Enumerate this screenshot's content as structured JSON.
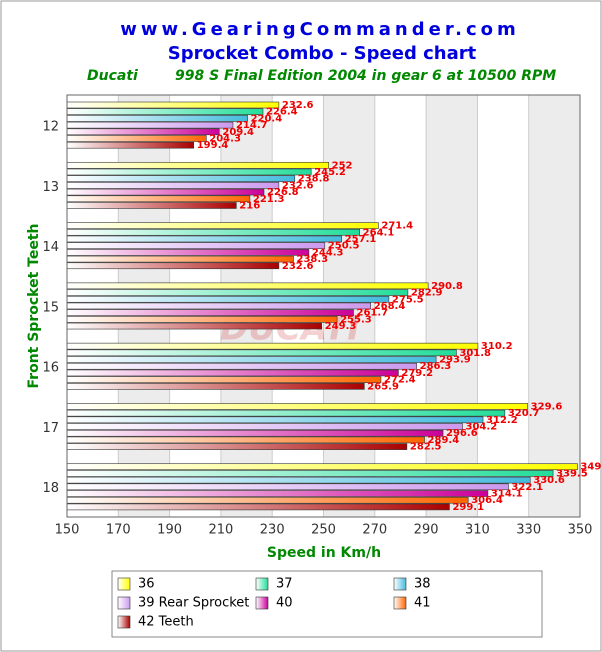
{
  "chart_data": {
    "type": "bar",
    "orientation": "horizontal",
    "title": "www.GearingCommander.com",
    "subtitle": "Sprocket Combo - Speed chart",
    "make": "Ducati",
    "model_line": "998 S Final Edition  2004 in gear 6 at 10500 RPM",
    "watermark": "DUCATI",
    "x_label": "Speed in Km/h",
    "y_label": "Front Sprocket Teeth",
    "categories": [
      "12",
      "13",
      "14",
      "15",
      "16",
      "17",
      "18"
    ],
    "series": [
      {
        "name": "36",
        "color": "#ffff00",
        "values": [
          232.6,
          252,
          271.4,
          290.8,
          310.2,
          329.6,
          349
        ]
      },
      {
        "name": "37",
        "color": "#22dd99",
        "values": [
          226.4,
          245.2,
          264.1,
          282.9,
          301.8,
          320.7,
          339.5
        ]
      },
      {
        "name": "38",
        "color": "#44bbdd",
        "values": [
          220.4,
          238.8,
          257.1,
          275.5,
          293.9,
          312.2,
          330.6
        ]
      },
      {
        "name": "39 Rear Sprocket",
        "color": "#cc99ee",
        "values": [
          214.7,
          232.6,
          250.5,
          268.4,
          286.3,
          304.2,
          322.1
        ]
      },
      {
        "name": "40",
        "color": "#cc0099",
        "values": [
          209.4,
          226.8,
          244.3,
          261.7,
          279.2,
          296.6,
          314.1
        ]
      },
      {
        "name": "41",
        "color": "#ff6600",
        "values": [
          204.3,
          221.3,
          238.3,
          255.3,
          272.4,
          289.4,
          306.4
        ]
      },
      {
        "name": "42 Teeth",
        "color": "#aa0000",
        "values": [
          199.4,
          216,
          232.6,
          249.3,
          265.9,
          282.5,
          299.1
        ]
      }
    ],
    "xlim": [
      150,
      350
    ],
    "xticks": [
      150,
      170,
      190,
      210,
      230,
      250,
      270,
      290,
      310,
      330,
      350
    ],
    "grid": true
  }
}
